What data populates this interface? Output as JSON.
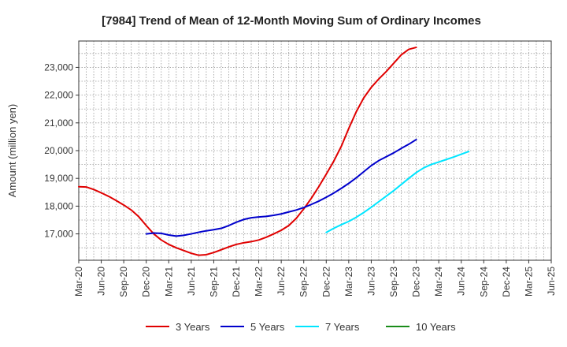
{
  "chart_data": {
    "type": "line",
    "title": "[7984]  Trend of Mean of 12-Month Moving Sum of Ordinary Incomes",
    "xlabel": "",
    "ylabel": "Amount (million yen)",
    "ylim": [
      16050,
      23950
    ],
    "yticks": [
      17000,
      18000,
      19000,
      20000,
      21000,
      22000,
      23000
    ],
    "ytick_labels": [
      "17,000",
      "18,000",
      "19,000",
      "20,000",
      "21,000",
      "22,000",
      "23,000"
    ],
    "x_start": "Mar-20",
    "x_tick_labels": [
      "Mar-20",
      "Jun-20",
      "Sep-20",
      "Dec-20",
      "Mar-21",
      "Jun-21",
      "Sep-21",
      "Dec-21",
      "Mar-22",
      "Jun-22",
      "Sep-22",
      "Dec-22",
      "Mar-23",
      "Jun-23",
      "Sep-23",
      "Dec-23",
      "Mar-24",
      "Jun-24",
      "Sep-24",
      "Dec-24",
      "Mar-25",
      "Jun-25"
    ],
    "grid": true,
    "legend_position": "bottom",
    "series": [
      {
        "name": "3 Years",
        "color": "#e00000",
        "start_index": 0,
        "values": [
          18700,
          18690,
          18600,
          18480,
          18350,
          18200,
          18040,
          17860,
          17620,
          17300,
          17000,
          16780,
          16620,
          16500,
          16400,
          16300,
          16230,
          16250,
          16330,
          16430,
          16530,
          16620,
          16680,
          16720,
          16780,
          16880,
          17000,
          17130,
          17300,
          17560,
          17900,
          18280,
          18700,
          19150,
          19620,
          20150,
          20800,
          21400,
          21900,
          22280,
          22580,
          22850,
          23150,
          23450,
          23650,
          23720
        ]
      },
      {
        "name": "5 Years",
        "color": "#0000cc",
        "start_index": 9,
        "values": [
          17000,
          17030,
          17020,
          16960,
          16920,
          16950,
          17000,
          17060,
          17110,
          17150,
          17200,
          17300,
          17420,
          17520,
          17580,
          17610,
          17630,
          17670,
          17720,
          17790,
          17860,
          17950,
          18060,
          18180,
          18320,
          18470,
          18640,
          18820,
          19020,
          19240,
          19460,
          19640,
          19780,
          19920,
          20080,
          20230,
          20400
        ]
      },
      {
        "name": "7 Years",
        "color": "#00e5ff",
        "start_index": 33,
        "values": [
          17050,
          17200,
          17330,
          17450,
          17600,
          17770,
          17960,
          18160,
          18360,
          18560,
          18780,
          19000,
          19210,
          19380,
          19500,
          19590,
          19680,
          19770,
          19870,
          19970
        ]
      },
      {
        "name": "10 Years",
        "color": "#1a8c1a",
        "start_index": 0,
        "values": []
      }
    ]
  }
}
